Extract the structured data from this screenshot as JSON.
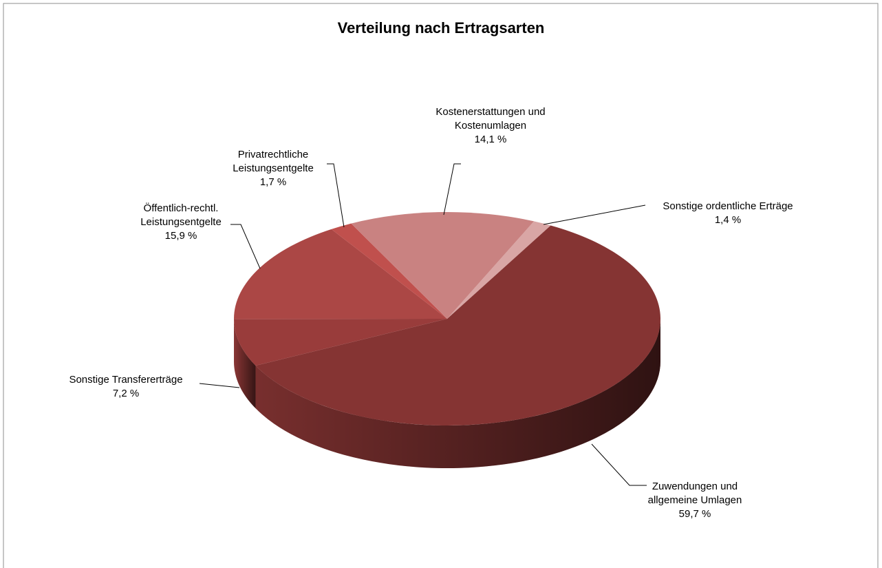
{
  "chart_data": {
    "type": "pie",
    "title": "Verteilung nach Ertragsarten",
    "categories": [
      "Sonstige ordentliche Erträge",
      "Zuwendungen und\nallgemeine Umlagen",
      "Sonstige Transfererträge",
      "Öffentlich-rechtl.\nLeistungsentgelte",
      "Privatrechtliche\nLeistungsentgelte",
      "Kostenerstattungen und\nKostenumlagen"
    ],
    "values": [
      1.4,
      59.7,
      7.2,
      15.9,
      1.7,
      14.1
    ],
    "value_labels": [
      "1,4 %",
      "59,7 %",
      "7,2 %",
      "15,9 %",
      "1,7 %",
      "14,1 %"
    ],
    "colors": [
      "#d9a6a5",
      "#853433",
      "#993c3b",
      "#ab4745",
      "#c0504d",
      "#c98281"
    ]
  }
}
